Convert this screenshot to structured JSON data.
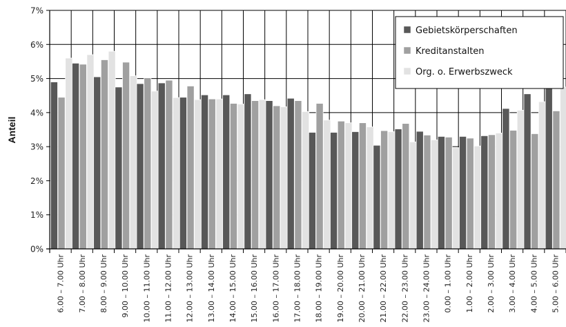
{
  "chart_data": {
    "type": "bar",
    "title": "",
    "xlabel": "",
    "ylabel": "Anteil",
    "ylim": [
      0,
      7
    ],
    "y_ticks": [
      "0%",
      "1%",
      "2%",
      "3%",
      "4%",
      "5%",
      "6%",
      "7%"
    ],
    "grid": "on",
    "legend_position": "top-right",
    "categories": [
      "6.00 – 7.00 Uhr",
      "7.00 – 8.00 Uhr",
      "8.00 – 9.00 Uhr",
      "9.00 – 10.00 Uhr",
      "10.00 – 11.00 Uhr",
      "11.00 – 12.00 Uhr",
      "12.00 – 13.00 Uhr",
      "13.00 – 14.00 Uhr",
      "14.00 – 15.00 Uhr",
      "15.00 – 16.00 Uhr",
      "16.00 – 17.00 Uhr",
      "17.00 – 18.00 Uhr",
      "18.00 – 19.00 Uhr",
      "19.00 – 20.00 Uhr",
      "20.00 – 21.00 Uhr",
      "21.00 – 22.00 Uhr",
      "22.00 – 23.00 Uhr",
      "23.00 – 24.00 Uhr",
      "0.00 – 1.00 Uhr",
      "1.00 – 2.00 Uhr",
      "2.00 – 3.00 Uhr",
      "3.00 – 4.00 Uhr",
      "4.00 – 5.00 Uhr",
      "5.00 – 6.00 Uhr"
    ],
    "series": [
      {
        "name": "Gebietskörperschaften",
        "color": "#585858",
        "values": [
          4.9,
          5.45,
          5.05,
          4.75,
          4.85,
          4.87,
          4.45,
          4.52,
          4.52,
          4.55,
          4.35,
          4.42,
          3.42,
          3.42,
          3.44,
          3.04,
          3.52,
          3.45,
          3.3,
          3.3,
          3.32,
          4.12,
          4.55,
          5.0
        ]
      },
      {
        "name": "Kreditanstalten",
        "color": "#a0a0a0",
        "values": [
          4.45,
          5.42,
          5.55,
          5.48,
          5.02,
          4.95,
          4.78,
          4.4,
          4.27,
          4.35,
          4.2,
          4.35,
          4.27,
          3.75,
          3.7,
          3.47,
          3.68,
          3.34,
          3.28,
          3.25,
          3.35,
          3.48,
          3.38,
          4.05
        ]
      },
      {
        "name": "Org. o. Erwerbszweck",
        "color": "#e2e2e2",
        "values": [
          5.6,
          5.7,
          5.8,
          5.08,
          4.63,
          4.44,
          4.38,
          4.4,
          4.25,
          4.38,
          4.17,
          4.03,
          3.78,
          3.7,
          3.58,
          3.44,
          3.14,
          3.2,
          2.97,
          3.02,
          3.4,
          4.07,
          4.32,
          4.75
        ]
      }
    ]
  }
}
